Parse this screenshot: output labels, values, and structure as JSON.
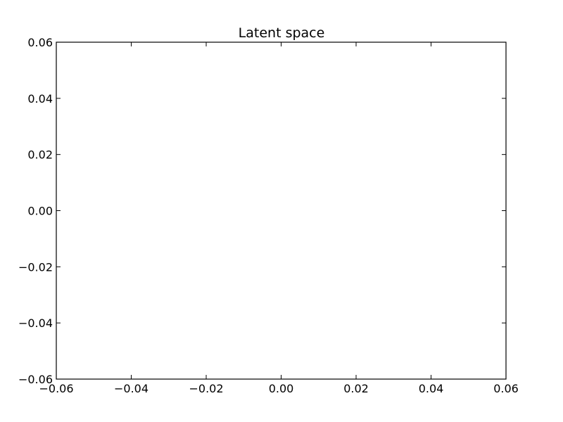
{
  "chart_data": {
    "type": "scatter",
    "title": "Latent space",
    "xlabel": "",
    "ylabel": "",
    "xlim": [
      -0.06,
      0.06
    ],
    "ylim": [
      -0.06,
      0.06
    ],
    "x_ticks": [
      -0.06,
      -0.04,
      -0.02,
      0.0,
      0.02,
      0.04,
      0.06
    ],
    "x_tick_labels": [
      "−0.06",
      "−0.04",
      "−0.02",
      "0.00",
      "0.02",
      "0.04",
      "0.06"
    ],
    "y_ticks": [
      0.06,
      0.04,
      0.02,
      0.0,
      -0.02,
      -0.04,
      -0.06
    ],
    "y_tick_labels": [
      "0.06",
      "0.04",
      "0.02",
      "0.00",
      "−0.02",
      "−0.04",
      "−0.06"
    ],
    "grid": false,
    "series": []
  }
}
